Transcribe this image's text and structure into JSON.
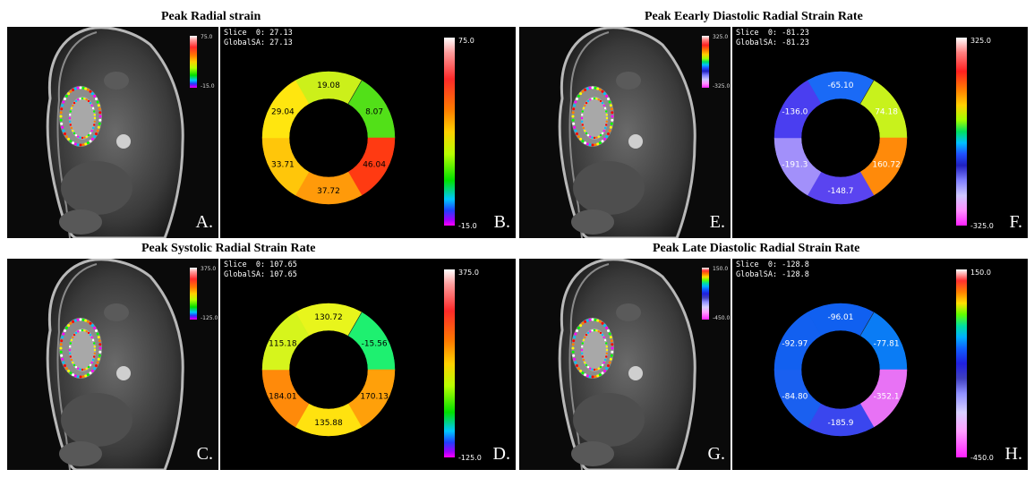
{
  "panels": [
    {
      "id": "A",
      "title": "Peak Radial strain",
      "mri_letter": "A.",
      "ring_letter": "B.",
      "mri_scale_max": "75.0",
      "mri_scale_min": "-15.0",
      "scale_max": "75.0",
      "scale_min": "-15.0",
      "slice": "Slice  0: 27.13",
      "global": "GlobalSA: 27.13",
      "gradient": "linear-gradient(to bottom,#ffffff 0%,#ff9c9c 8%,#ff2a2a 22%,#ff7a00 38%,#ffd000 50%,#b7ff00 62%,#00e000 76%,#00c8ff 86%,#2040ff 92%,#a000ff 97%,#ff00ff 100%)",
      "segments": [
        {
          "label": "19.08",
          "color": "#ccf01a"
        },
        {
          "label": "8.07",
          "color": "#52e018"
        },
        {
          "label": "46.04",
          "color": "#ff3a12"
        },
        {
          "label": "37.72",
          "color": "#ff9a0a"
        },
        {
          "label": "33.71",
          "color": "#ffc60a"
        },
        {
          "label": "29.04",
          "color": "#ffe60f"
        }
      ],
      "label_color": "#000000"
    },
    {
      "id": "E",
      "title": "Peak Eearly Diastolic Radial Strain Rate",
      "mri_letter": "E.",
      "ring_letter": "F.",
      "mri_scale_max": "325.0",
      "mri_scale_min": "-325.0",
      "scale_max": "325.0",
      "scale_min": "-325.0",
      "slice": "Slice  0: -81.23",
      "global": "GlobalSA: -81.23",
      "gradient": "linear-gradient(to bottom,#ffffff 0%,#ff8080 8%,#ff2020 18%,#ff8000 28%,#ffd000 36%,#a0ff00 44%,#00e060 50%,#00c0ff 56%,#2050ff 62%,#2020c0 68%,#8080ff 76%,#d0c8ff 84%,#ff90ff 92%,#ff20ff 100%)",
      "segments": [
        {
          "label": "-65.10",
          "color": "#1a6af6"
        },
        {
          "label": "74.18",
          "color": "#c8f21c"
        },
        {
          "label": "160.72",
          "color": "#ff8a0a"
        },
        {
          "label": "-148.7",
          "color": "#5a44f0"
        },
        {
          "label": "-191.3",
          "color": "#a290fa"
        },
        {
          "label": "-136.0",
          "color": "#4a3ef0"
        }
      ],
      "label_color": "#ffffff"
    },
    {
      "id": "C",
      "title": "Peak Systolic Radial Strain Rate",
      "mri_letter": "C.",
      "ring_letter": "D.",
      "mri_scale_max": "375.0",
      "mri_scale_min": "-125.0",
      "scale_max": "375.0",
      "scale_min": "-125.0",
      "slice": "Slice  0: 107.65",
      "global": "GlobalSA: 107.65",
      "gradient": "linear-gradient(to bottom,#ffffff 0%,#ff9c9c 8%,#ff2a2a 22%,#ff7a00 38%,#ffd000 50%,#b7ff00 62%,#00e000 76%,#00c8ff 86%,#2040ff 92%,#a000ff 97%,#ff00ff 100%)",
      "segments": [
        {
          "label": "130.72",
          "color": "#e8f51c"
        },
        {
          "label": "-15.56",
          "color": "#1ef070"
        },
        {
          "label": "170.13",
          "color": "#ffa00a"
        },
        {
          "label": "135.88",
          "color": "#ffe20f"
        },
        {
          "label": "184.01",
          "color": "#ff8a0a"
        },
        {
          "label": "115.18",
          "color": "#d6f51c"
        }
      ],
      "label_color": "#000000"
    },
    {
      "id": "G",
      "title": "Peak Late Diastolic Radial Strain Rate",
      "mri_letter": "G.",
      "ring_letter": "H.",
      "mri_scale_max": "150.0",
      "mri_scale_min": "-450.0",
      "scale_max": "150.0",
      "scale_min": "-450.0",
      "slice": "Slice  0: -128.8",
      "global": "GlobalSA: -128.8",
      "gradient": "linear-gradient(to bottom,#ffffff 0%,#ff3030 6%,#ff8000 12%,#ffe000 18%,#60ff00 24%,#00e0a0 30%,#00b0ff 36%,#1060ff 42%,#2020e0 50%,#4040c0 58%,#9090ff 66%,#d8d0ff 76%,#ffa0ff 86%,#ff20ff 100%)",
      "segments": [
        {
          "label": "-96.01",
          "color": "#1060f0"
        },
        {
          "label": "-77.81",
          "color": "#0a7cf5"
        },
        {
          "label": "-352.1",
          "color": "#e872f5"
        },
        {
          "label": "-185.9",
          "color": "#3a46ee"
        },
        {
          "label": "-84.80",
          "color": "#1a60f0"
        },
        {
          "label": "-92.97",
          "color": "#1260f0"
        }
      ],
      "label_color": "#ffffff"
    }
  ]
}
